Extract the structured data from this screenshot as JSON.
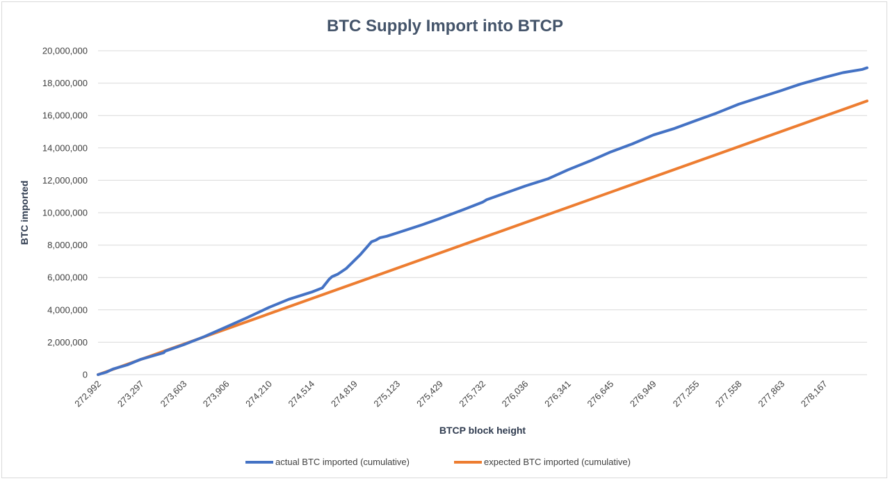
{
  "chart_data": {
    "type": "line",
    "title": "BTC Supply Import into BTCP",
    "xlabel": "BTCP block height",
    "ylabel": "BTC imported",
    "xlim": [
      272992,
      278472
    ],
    "ylim": [
      0,
      20000000
    ],
    "x_tick_labels": [
      "272,992",
      "273,297",
      "273,603",
      "273,906",
      "274,210",
      "274,514",
      "274,819",
      "275,123",
      "275,429",
      "275,732",
      "276,036",
      "276,341",
      "276,645",
      "276,949",
      "277,255",
      "277,558",
      "277,863",
      "278,167"
    ],
    "x_tick_values": [
      272992,
      273297,
      273603,
      273906,
      274210,
      274514,
      274819,
      275123,
      275429,
      275732,
      276036,
      276341,
      276645,
      276949,
      277255,
      277558,
      277863,
      278167
    ],
    "y_tick_labels": [
      "0",
      "2,000,000",
      "4,000,000",
      "6,000,000",
      "8,000,000",
      "10,000,000",
      "12,000,000",
      "14,000,000",
      "16,000,000",
      "18,000,000",
      "20,000,000"
    ],
    "y_tick_values": [
      0,
      2000000,
      4000000,
      6000000,
      8000000,
      10000000,
      12000000,
      14000000,
      16000000,
      18000000,
      20000000
    ],
    "grid": "horizontal",
    "legend_position": "bottom",
    "series": [
      {
        "name": "actual BTC imported (cumulative)",
        "color": "#4472c4",
        "x": [
          272992,
          273050,
          273100,
          273200,
          273297,
          273400,
          273460,
          273470,
          273603,
          273750,
          273906,
          274050,
          274210,
          274350,
          274514,
          274590,
          274640,
          274660,
          274700,
          274760,
          274819,
          274860,
          274900,
          274940,
          274970,
          275000,
          275050,
          275123,
          275300,
          275429,
          275600,
          275732,
          275760,
          276036,
          276200,
          276341,
          276500,
          276645,
          276800,
          276949,
          277100,
          277255,
          277400,
          277558,
          277700,
          277863,
          278000,
          278167,
          278300,
          278440,
          278472
        ],
        "y": [
          0,
          150000,
          350000,
          600000,
          950000,
          1200000,
          1350000,
          1450000,
          1850000,
          2350000,
          2950000,
          3500000,
          4150000,
          4650000,
          5100000,
          5350000,
          5900000,
          6050000,
          6200000,
          6550000,
          7050000,
          7400000,
          7800000,
          8200000,
          8300000,
          8450000,
          8550000,
          8750000,
          9250000,
          9650000,
          10200000,
          10650000,
          10800000,
          11650000,
          12100000,
          12650000,
          13200000,
          13750000,
          14250000,
          14800000,
          15200000,
          15700000,
          16150000,
          16700000,
          17100000,
          17550000,
          17950000,
          18350000,
          18650000,
          18850000,
          18950000
        ]
      },
      {
        "name": "expected BTC imported (cumulative)",
        "color": "#ed7d31",
        "x": [
          272992,
          278472
        ],
        "y": [
          0,
          16900000
        ]
      }
    ]
  }
}
